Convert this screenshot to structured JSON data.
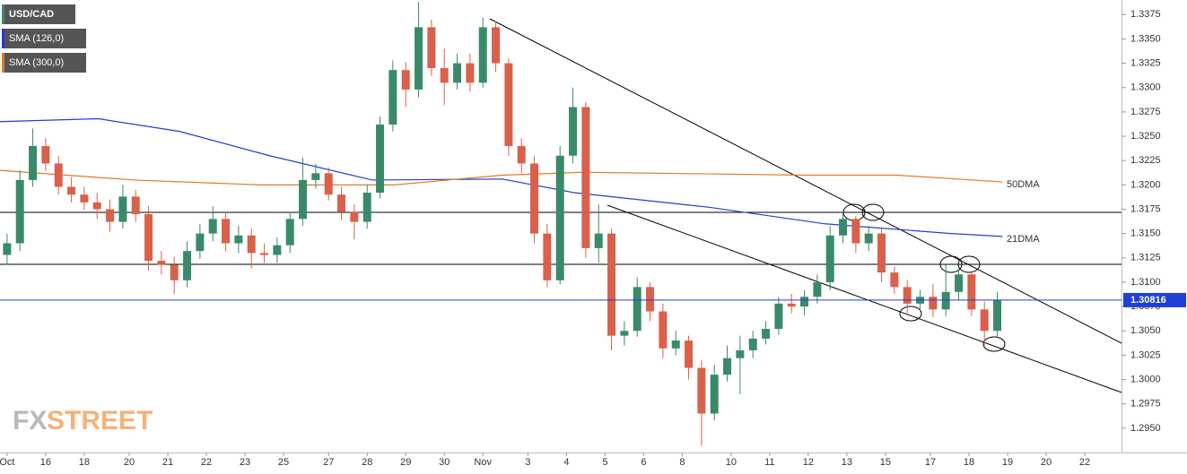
{
  "chart_data": {
    "type": "candlestick",
    "symbol": "USD/CAD",
    "up_color": "#3a8a6a",
    "down_color": "#d9604a",
    "x": [
      0,
      1,
      2,
      3,
      4,
      5,
      6,
      7,
      8,
      9,
      10,
      11,
      12,
      13,
      14,
      15,
      16,
      17,
      18,
      19,
      20,
      21,
      22,
      23,
      24,
      25,
      26,
      27,
      28,
      29,
      30,
      31,
      32,
      33,
      34,
      35,
      36,
      37,
      38,
      39,
      40,
      41,
      42,
      43,
      44,
      45,
      46,
      47,
      48,
      49,
      50,
      51,
      52,
      53,
      54,
      55,
      56,
      57,
      58,
      59,
      60,
      61,
      62,
      63,
      64,
      65,
      66,
      67,
      68,
      69,
      70,
      71,
      72,
      73,
      74,
      75,
      76,
      77
    ],
    "open": [
      1.3128,
      1.314,
      1.3205,
      1.324,
      1.3222,
      1.3198,
      1.319,
      1.3182,
      1.3175,
      1.3162,
      1.3188,
      1.317,
      1.3122,
      1.3118,
      1.3102,
      1.3132,
      1.315,
      1.3165,
      1.314,
      1.3148,
      1.313,
      1.3128,
      1.3138,
      1.3165,
      1.3205,
      1.3212,
      1.319,
      1.3172,
      1.3162,
      1.3192,
      1.3262,
      1.3318,
      1.3298,
      1.3362,
      1.332,
      1.3305,
      1.3325,
      1.3305,
      1.3362,
      1.3325,
      1.324,
      1.3222,
      1.315,
      1.3102,
      1.323,
      1.328,
      1.3135,
      1.315,
      1.3045,
      1.305,
      1.3095,
      1.307,
      1.3032,
      1.304,
      1.3012,
      1.2965,
      1.3005,
      1.3022,
      1.303,
      1.3042,
      1.3052,
      1.3078,
      1.3075,
      1.3085,
      1.31,
      1.3148,
      1.3165,
      1.314,
      1.315,
      1.311,
      1.3095,
      1.3078,
      1.3085,
      1.3072,
      1.309,
      1.3108,
      1.3072,
      1.305
    ],
    "high": [
      1.315,
      1.3215,
      1.3258,
      1.3248,
      1.323,
      1.3208,
      1.3198,
      1.3192,
      1.3185,
      1.32,
      1.3195,
      1.3178,
      1.3132,
      1.3126,
      1.3142,
      1.316,
      1.3178,
      1.3172,
      1.3158,
      1.3155,
      1.314,
      1.3146,
      1.3172,
      1.3228,
      1.3222,
      1.3218,
      1.3198,
      1.318,
      1.32,
      1.327,
      1.3328,
      1.3326,
      1.3388,
      1.337,
      1.334,
      1.3335,
      1.3335,
      1.3372,
      1.3368,
      1.333,
      1.3248,
      1.323,
      1.316,
      1.324,
      1.33,
      1.3285,
      1.318,
      1.3155,
      1.306,
      1.3105,
      1.31,
      1.3078,
      1.305,
      1.3045,
      1.302,
      1.3015,
      1.3035,
      1.3045,
      1.305,
      1.306,
      1.3085,
      1.3088,
      1.3092,
      1.3108,
      1.3158,
      1.3172,
      1.3168,
      1.3158,
      1.3155,
      1.3116,
      1.3102,
      1.3092,
      1.3098,
      1.3118,
      1.3112,
      1.3112,
      1.308,
      1.309
    ],
    "low": [
      1.3118,
      1.3132,
      1.3198,
      1.3214,
      1.319,
      1.3182,
      1.3174,
      1.3165,
      1.3152,
      1.3155,
      1.3162,
      1.3112,
      1.3108,
      1.3088,
      1.3095,
      1.3124,
      1.3142,
      1.3132,
      1.313,
      1.3114,
      1.312,
      1.312,
      1.313,
      1.3158,
      1.3196,
      1.3184,
      1.3164,
      1.3144,
      1.3155,
      1.3186,
      1.3255,
      1.328,
      1.329,
      1.3312,
      1.3282,
      1.3298,
      1.3296,
      1.33,
      1.3316,
      1.323,
      1.3212,
      1.314,
      1.3095,
      1.3098,
      1.3222,
      1.3125,
      1.312,
      1.303,
      1.3035,
      1.3044,
      1.306,
      1.3022,
      1.3025,
      1.3,
      1.2932,
      1.2958,
      1.2998,
      1.2985,
      1.3022,
      1.3036,
      1.3046,
      1.3068,
      1.3066,
      1.3078,
      1.3092,
      1.314,
      1.313,
      1.3132,
      1.31,
      1.3088,
      1.3068,
      1.307,
      1.3064,
      1.3065,
      1.3082,
      1.3065,
      1.3035,
      1.3044
    ],
    "close": [
      1.314,
      1.3205,
      1.324,
      1.3222,
      1.3198,
      1.319,
      1.3182,
      1.3175,
      1.3162,
      1.3188,
      1.317,
      1.3122,
      1.3118,
      1.3102,
      1.3132,
      1.315,
      1.3165,
      1.314,
      1.3148,
      1.313,
      1.3128,
      1.3138,
      1.3165,
      1.3205,
      1.3212,
      1.319,
      1.3172,
      1.3162,
      1.3192,
      1.3262,
      1.3318,
      1.3298,
      1.3362,
      1.332,
      1.3305,
      1.3325,
      1.3305,
      1.3362,
      1.3325,
      1.324,
      1.3222,
      1.315,
      1.3102,
      1.323,
      1.328,
      1.3135,
      1.315,
      1.3045,
      1.305,
      1.3095,
      1.307,
      1.3032,
      1.304,
      1.3012,
      1.2965,
      1.3005,
      1.3022,
      1.303,
      1.3042,
      1.3052,
      1.3078,
      1.3075,
      1.3085,
      1.31,
      1.3148,
      1.3165,
      1.314,
      1.315,
      1.311,
      1.3095,
      1.3078,
      1.3085,
      1.3072,
      1.309,
      1.3108,
      1.3072,
      1.305,
      1.30816
    ],
    "series": [
      {
        "name": "SMA (126,0)",
        "color": "#1f3fd6",
        "x": [
          -0.6,
          7.1,
          13.4,
          20.4,
          28.4,
          38.5,
          44.1,
          54.6,
          63.6,
          73.4,
          77.4
        ],
        "values": [
          1.3265,
          1.3268,
          1.3255,
          1.323,
          1.3205,
          1.3206,
          1.3192,
          1.3177,
          1.316,
          1.315,
          1.3147
        ]
      },
      {
        "name": "SMA (300,0)",
        "color": "#e07b2a",
        "x": [
          -0.6,
          9.9,
          19.7,
          30.1,
          38.5,
          44.8,
          62.2,
          69.2,
          77.4
        ],
        "values": [
          1.3215,
          1.3205,
          1.32,
          1.32,
          1.321,
          1.3213,
          1.321,
          1.321,
          1.3203
        ]
      }
    ],
    "annotations": [
      "50DMA",
      "21DMA"
    ],
    "watermark": [
      "FX",
      "STREET"
    ],
    "xlim": [
      -0.55,
      86.66
    ],
    "ylim": [
      1.2925,
      1.339
    ],
    "xticks": [
      {
        "value": 0,
        "label": "Oct"
      },
      {
        "value": 3,
        "label": "16"
      },
      {
        "value": 6,
        "label": "18"
      },
      {
        "value": 9.5,
        "label": "20"
      },
      {
        "value": 12.5,
        "label": "21"
      },
      {
        "value": 15.5,
        "label": "22"
      },
      {
        "value": 18.5,
        "label": "23"
      },
      {
        "value": 21.5,
        "label": "25"
      },
      {
        "value": 25,
        "label": "27"
      },
      {
        "value": 28,
        "label": "28"
      },
      {
        "value": 31,
        "label": "29"
      },
      {
        "value": 34,
        "label": "30"
      },
      {
        "value": 37,
        "label": "Nov"
      },
      {
        "value": 40.5,
        "label": "3"
      },
      {
        "value": 43.5,
        "label": "4"
      },
      {
        "value": 46.5,
        "label": "5"
      },
      {
        "value": 49.5,
        "label": "6"
      },
      {
        "value": 52.5,
        "label": "8"
      },
      {
        "value": 56.3,
        "label": "10"
      },
      {
        "value": 59.3,
        "label": "11"
      },
      {
        "value": 62.3,
        "label": "12"
      },
      {
        "value": 65.3,
        "label": "13"
      },
      {
        "value": 68.3,
        "label": "15"
      },
      {
        "value": 71.8,
        "label": "17"
      },
      {
        "value": 74.8,
        "label": "18"
      },
      {
        "value": 77.8,
        "label": "19"
      },
      {
        "value": 80.8,
        "label": "20"
      },
      {
        "value": 83.8,
        "label": "22"
      }
    ],
    "yticks": [
      {
        "value": 1.295,
        "label": "1.2950"
      },
      {
        "value": 1.2975,
        "label": "1.2975"
      },
      {
        "value": 1.3,
        "label": "1.3000"
      },
      {
        "value": 1.3025,
        "label": "1.3025"
      },
      {
        "value": 1.305,
        "label": "1.3050"
      },
      {
        "value": 1.3075,
        "label": "1.3075"
      },
      {
        "value": 1.31,
        "label": "1.3100"
      },
      {
        "value": 1.3125,
        "label": "1.3125"
      },
      {
        "value": 1.315,
        "label": "1.3150"
      },
      {
        "value": 1.3175,
        "label": "1.3175"
      },
      {
        "value": 1.32,
        "label": "1.3200"
      },
      {
        "value": 1.3225,
        "label": "1.3225"
      },
      {
        "value": 1.325,
        "label": "1.3250"
      },
      {
        "value": 1.3275,
        "label": "1.3275"
      },
      {
        "value": 1.33,
        "label": "1.3300"
      },
      {
        "value": 1.3325,
        "label": "1.3325"
      },
      {
        "value": 1.335,
        "label": "1.3350"
      },
      {
        "value": 1.3375,
        "label": "1.3375"
      }
    ]
  }
}
